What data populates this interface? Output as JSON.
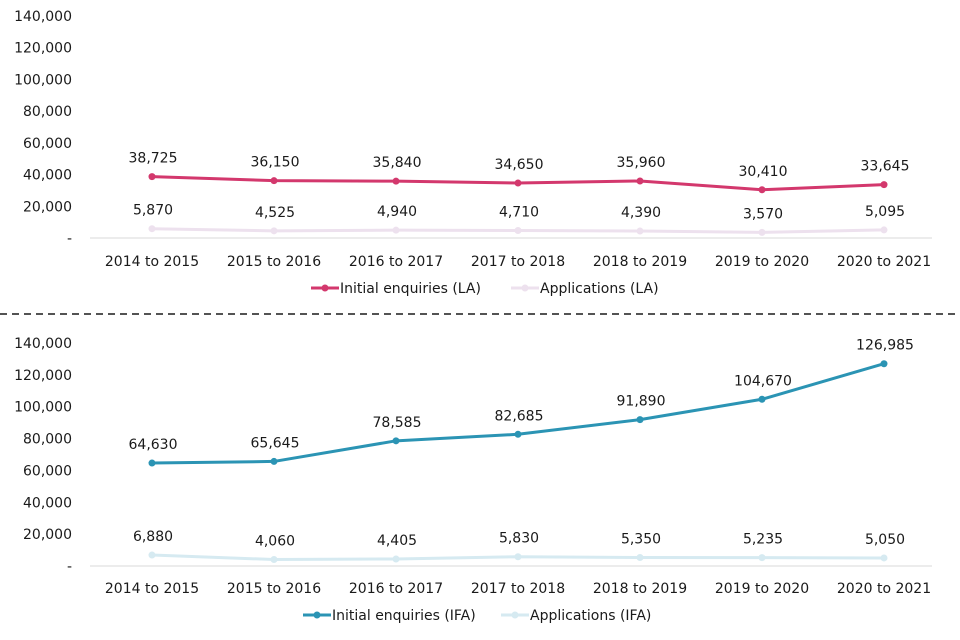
{
  "chart_data": [
    {
      "type": "line",
      "title": "",
      "xlabel": "",
      "ylabel": "",
      "categories": [
        "2014 to 2015",
        "2015 to 2016",
        "2016 to 2017",
        "2017 to 2018",
        "2018 to 2019",
        "2019 to 2020",
        "2020 to 2021"
      ],
      "ylim": [
        0,
        140000
      ],
      "yticks": [
        0,
        20000,
        40000,
        60000,
        80000,
        100000,
        120000,
        140000
      ],
      "ytick_labels": [
        "-",
        "20,000",
        "40,000",
        "60,000",
        "80,000",
        "100,000",
        "120,000",
        "140,000"
      ],
      "grid": false,
      "legend_position": "bottom",
      "series": [
        {
          "name": "Initial enquiries (LA)",
          "color": "#d3386d",
          "values": [
            38725,
            36150,
            35840,
            34650,
            35960,
            30410,
            33645
          ],
          "labels": [
            "38,725",
            "36,150",
            "35,840",
            "34,650",
            "35,960",
            "30,410",
            "33,645"
          ]
        },
        {
          "name": "Applications (LA)",
          "color": "#ede1ee",
          "values": [
            5870,
            4525,
            4940,
            4710,
            4390,
            3570,
            5095
          ],
          "labels": [
            "5,870",
            "4,525",
            "4,940",
            "4,710",
            "4,390",
            "3,570",
            "5,095"
          ]
        }
      ]
    },
    {
      "type": "line",
      "title": "",
      "xlabel": "",
      "ylabel": "",
      "categories": [
        "2014 to 2015",
        "2015 to 2016",
        "2016 to 2017",
        "2017 to 2018",
        "2018 to 2019",
        "2019 to 2020",
        "2020 to 2021"
      ],
      "ylim": [
        0,
        140000
      ],
      "yticks": [
        0,
        20000,
        40000,
        60000,
        80000,
        100000,
        120000,
        140000
      ],
      "ytick_labels": [
        "-",
        "20,000",
        "40,000",
        "60,000",
        "80,000",
        "100,000",
        "120,000",
        "140,000"
      ],
      "grid": false,
      "legend_position": "bottom",
      "series": [
        {
          "name": "Initial enquiries (IFA)",
          "color": "#2b94b4",
          "values": [
            64630,
            65645,
            78585,
            82685,
            91890,
            104670,
            126985
          ],
          "labels": [
            "64,630",
            "65,645",
            "78,585",
            "82,685",
            "91,890",
            "104,670",
            "126,985"
          ]
        },
        {
          "name": "Applications (IFA)",
          "color": "#d6eaf1",
          "values": [
            6880,
            4060,
            4405,
            5830,
            5350,
            5235,
            5050
          ],
          "labels": [
            "6,880",
            "4,060",
            "4,405",
            "5,830",
            "5,350",
            "5,235",
            "5,050"
          ]
        }
      ]
    }
  ],
  "divider": {
    "style": "dashed",
    "color": "#1a1a1a"
  },
  "axis_color": "#d9d9d9"
}
